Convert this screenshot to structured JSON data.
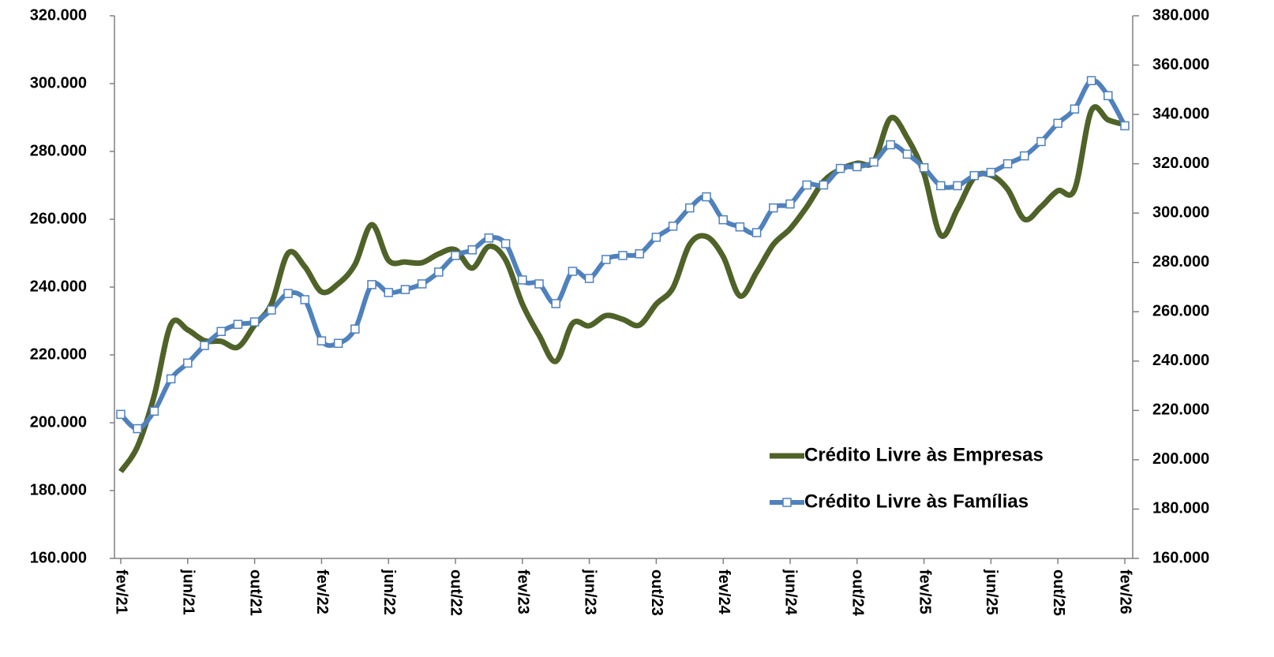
{
  "chart_data": {
    "type": "line",
    "categories": [
      "fev/21",
      null,
      null,
      null,
      "jun/21",
      null,
      null,
      null,
      "out/21",
      null,
      null,
      null,
      "fev/22",
      null,
      null,
      null,
      "jun/22",
      null,
      null,
      null,
      "out/22",
      null,
      null,
      null,
      "fev/23",
      null,
      null,
      null,
      "jun/23",
      null,
      null,
      null,
      "out/23",
      null,
      null,
      null,
      "fev/24",
      null,
      null,
      null,
      "jun/24",
      null,
      null,
      null,
      "out/24",
      null,
      null,
      null,
      "fev/25",
      null,
      null,
      null,
      "jun/25",
      null,
      null,
      null,
      "out/25",
      null,
      null,
      null,
      "fev/26"
    ],
    "series": [
      {
        "name": "Crédito Livre às Empresas",
        "color": "#4f6228",
        "axis": "y",
        "values": [
          185600,
          193000,
          208000,
          229000,
          227400,
          224200,
          224000,
          222300,
          228800,
          235000,
          250000,
          246000,
          238600,
          241000,
          246700,
          258400,
          247900,
          247400,
          247200,
          249800,
          251000,
          245600,
          252000,
          248000,
          235000,
          225800,
          218100,
          229300,
          228600,
          231600,
          230500,
          228800,
          235000,
          239800,
          252600,
          254900,
          249000,
          237400,
          244400,
          252600,
          257200,
          263700,
          271200,
          274700,
          276500,
          277000,
          289800,
          284000,
          273500,
          255300,
          263000,
          272300,
          273000,
          268800,
          260000,
          263700,
          268400,
          268800,
          292000,
          289300,
          287900
        ]
      },
      {
        "name": "Crédito Livre às Famílias",
        "color": "#4f81bd",
        "axis": "y2",
        "values": [
          218400,
          212600,
          219700,
          232800,
          239200,
          246300,
          252000,
          254900,
          255900,
          260700,
          267400,
          264900,
          248200,
          247200,
          253000,
          271000,
          267800,
          269000,
          271300,
          276100,
          282800,
          285100,
          289900,
          287600,
          272900,
          271300,
          263300,
          276400,
          273500,
          281200,
          282800,
          283500,
          290200,
          294700,
          302100,
          306600,
          297300,
          294400,
          292100,
          302100,
          303700,
          311400,
          311400,
          318100,
          318800,
          320700,
          327700,
          323900,
          318400,
          311100,
          311100,
          315200,
          316500,
          320000,
          323200,
          329000,
          336400,
          342200,
          353700,
          347600,
          335400
        ]
      }
    ],
    "ylim": [
      160000,
      320000
    ],
    "yticks": [
      {
        "value": 160000,
        "label": "160.000"
      },
      {
        "value": 180000,
        "label": "180.000"
      },
      {
        "value": 200000,
        "label": "200.000"
      },
      {
        "value": 220000,
        "label": "220.000"
      },
      {
        "value": 240000,
        "label": "240.000"
      },
      {
        "value": 260000,
        "label": "260.000"
      },
      {
        "value": 280000,
        "label": "280.000"
      },
      {
        "value": 300000,
        "label": "300.000"
      },
      {
        "value": 320000,
        "label": "320.000"
      }
    ],
    "y2lim": [
      160000,
      380000
    ],
    "y2ticks": [
      {
        "value": 160000,
        "label": "160.000"
      },
      {
        "value": 180000,
        "label": "180.000"
      },
      {
        "value": 200000,
        "label": "200.000"
      },
      {
        "value": 220000,
        "label": "220.000"
      },
      {
        "value": 240000,
        "label": "240.000"
      },
      {
        "value": 260000,
        "label": "260.000"
      },
      {
        "value": 280000,
        "label": "280.000"
      },
      {
        "value": 300000,
        "label": "300.000"
      },
      {
        "value": 320000,
        "label": "320.000"
      },
      {
        "value": 340000,
        "label": "340.000"
      },
      {
        "value": 360000,
        "label": "360.000"
      },
      {
        "value": 380000,
        "label": "380.000"
      }
    ],
    "grid": false,
    "legend_position": "lower right"
  }
}
